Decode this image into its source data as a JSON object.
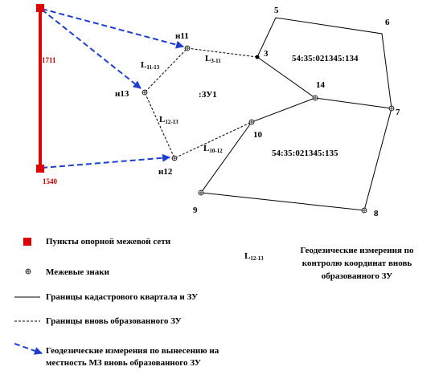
{
  "diagram": {
    "stations": [
      {
        "label": "1711"
      },
      {
        "label": "1540"
      }
    ],
    "new_marks": [
      {
        "label": "н11"
      },
      {
        "label": "н13"
      },
      {
        "label": "н12"
      }
    ],
    "points": [
      {
        "label": "3"
      },
      {
        "label": "5"
      },
      {
        "label": "6"
      },
      {
        "label": "14"
      },
      {
        "label": "7"
      },
      {
        "label": "10"
      },
      {
        "label": "9"
      },
      {
        "label": "8"
      }
    ],
    "segments": [
      {
        "main": "L",
        "sub": "11-13"
      },
      {
        "main": "L",
        "sub": "3-11"
      },
      {
        "main": "L",
        "sub": "12-13"
      },
      {
        "main": "L",
        "sub": "10-12"
      }
    ],
    "parcels": [
      {
        "label": ":ЗУ1"
      },
      {
        "label": "54:35:021345:134"
      },
      {
        "label": "54:35:021345:135"
      }
    ]
  },
  "legend": {
    "items": [
      {
        "lines": [
          "Пункты опорной межевой сети"
        ]
      },
      {
        "lines": [
          "Межевые знаки"
        ]
      },
      {
        "lines": [
          "Границы кадастрового квартала и ЗУ"
        ]
      },
      {
        "lines": [
          "Границы вновь образованного  ЗУ"
        ]
      },
      {
        "lines": [
          "Геодезические измерения по вынесению на",
          "местность МЗ вновь образованного ЗУ"
        ]
      }
    ],
    "control": {
      "main": "L",
      "sub": "12-13",
      "lines": [
        "Геодезические измерения по",
        "контролю координат вновь",
        "образованного ЗУ"
      ]
    }
  }
}
